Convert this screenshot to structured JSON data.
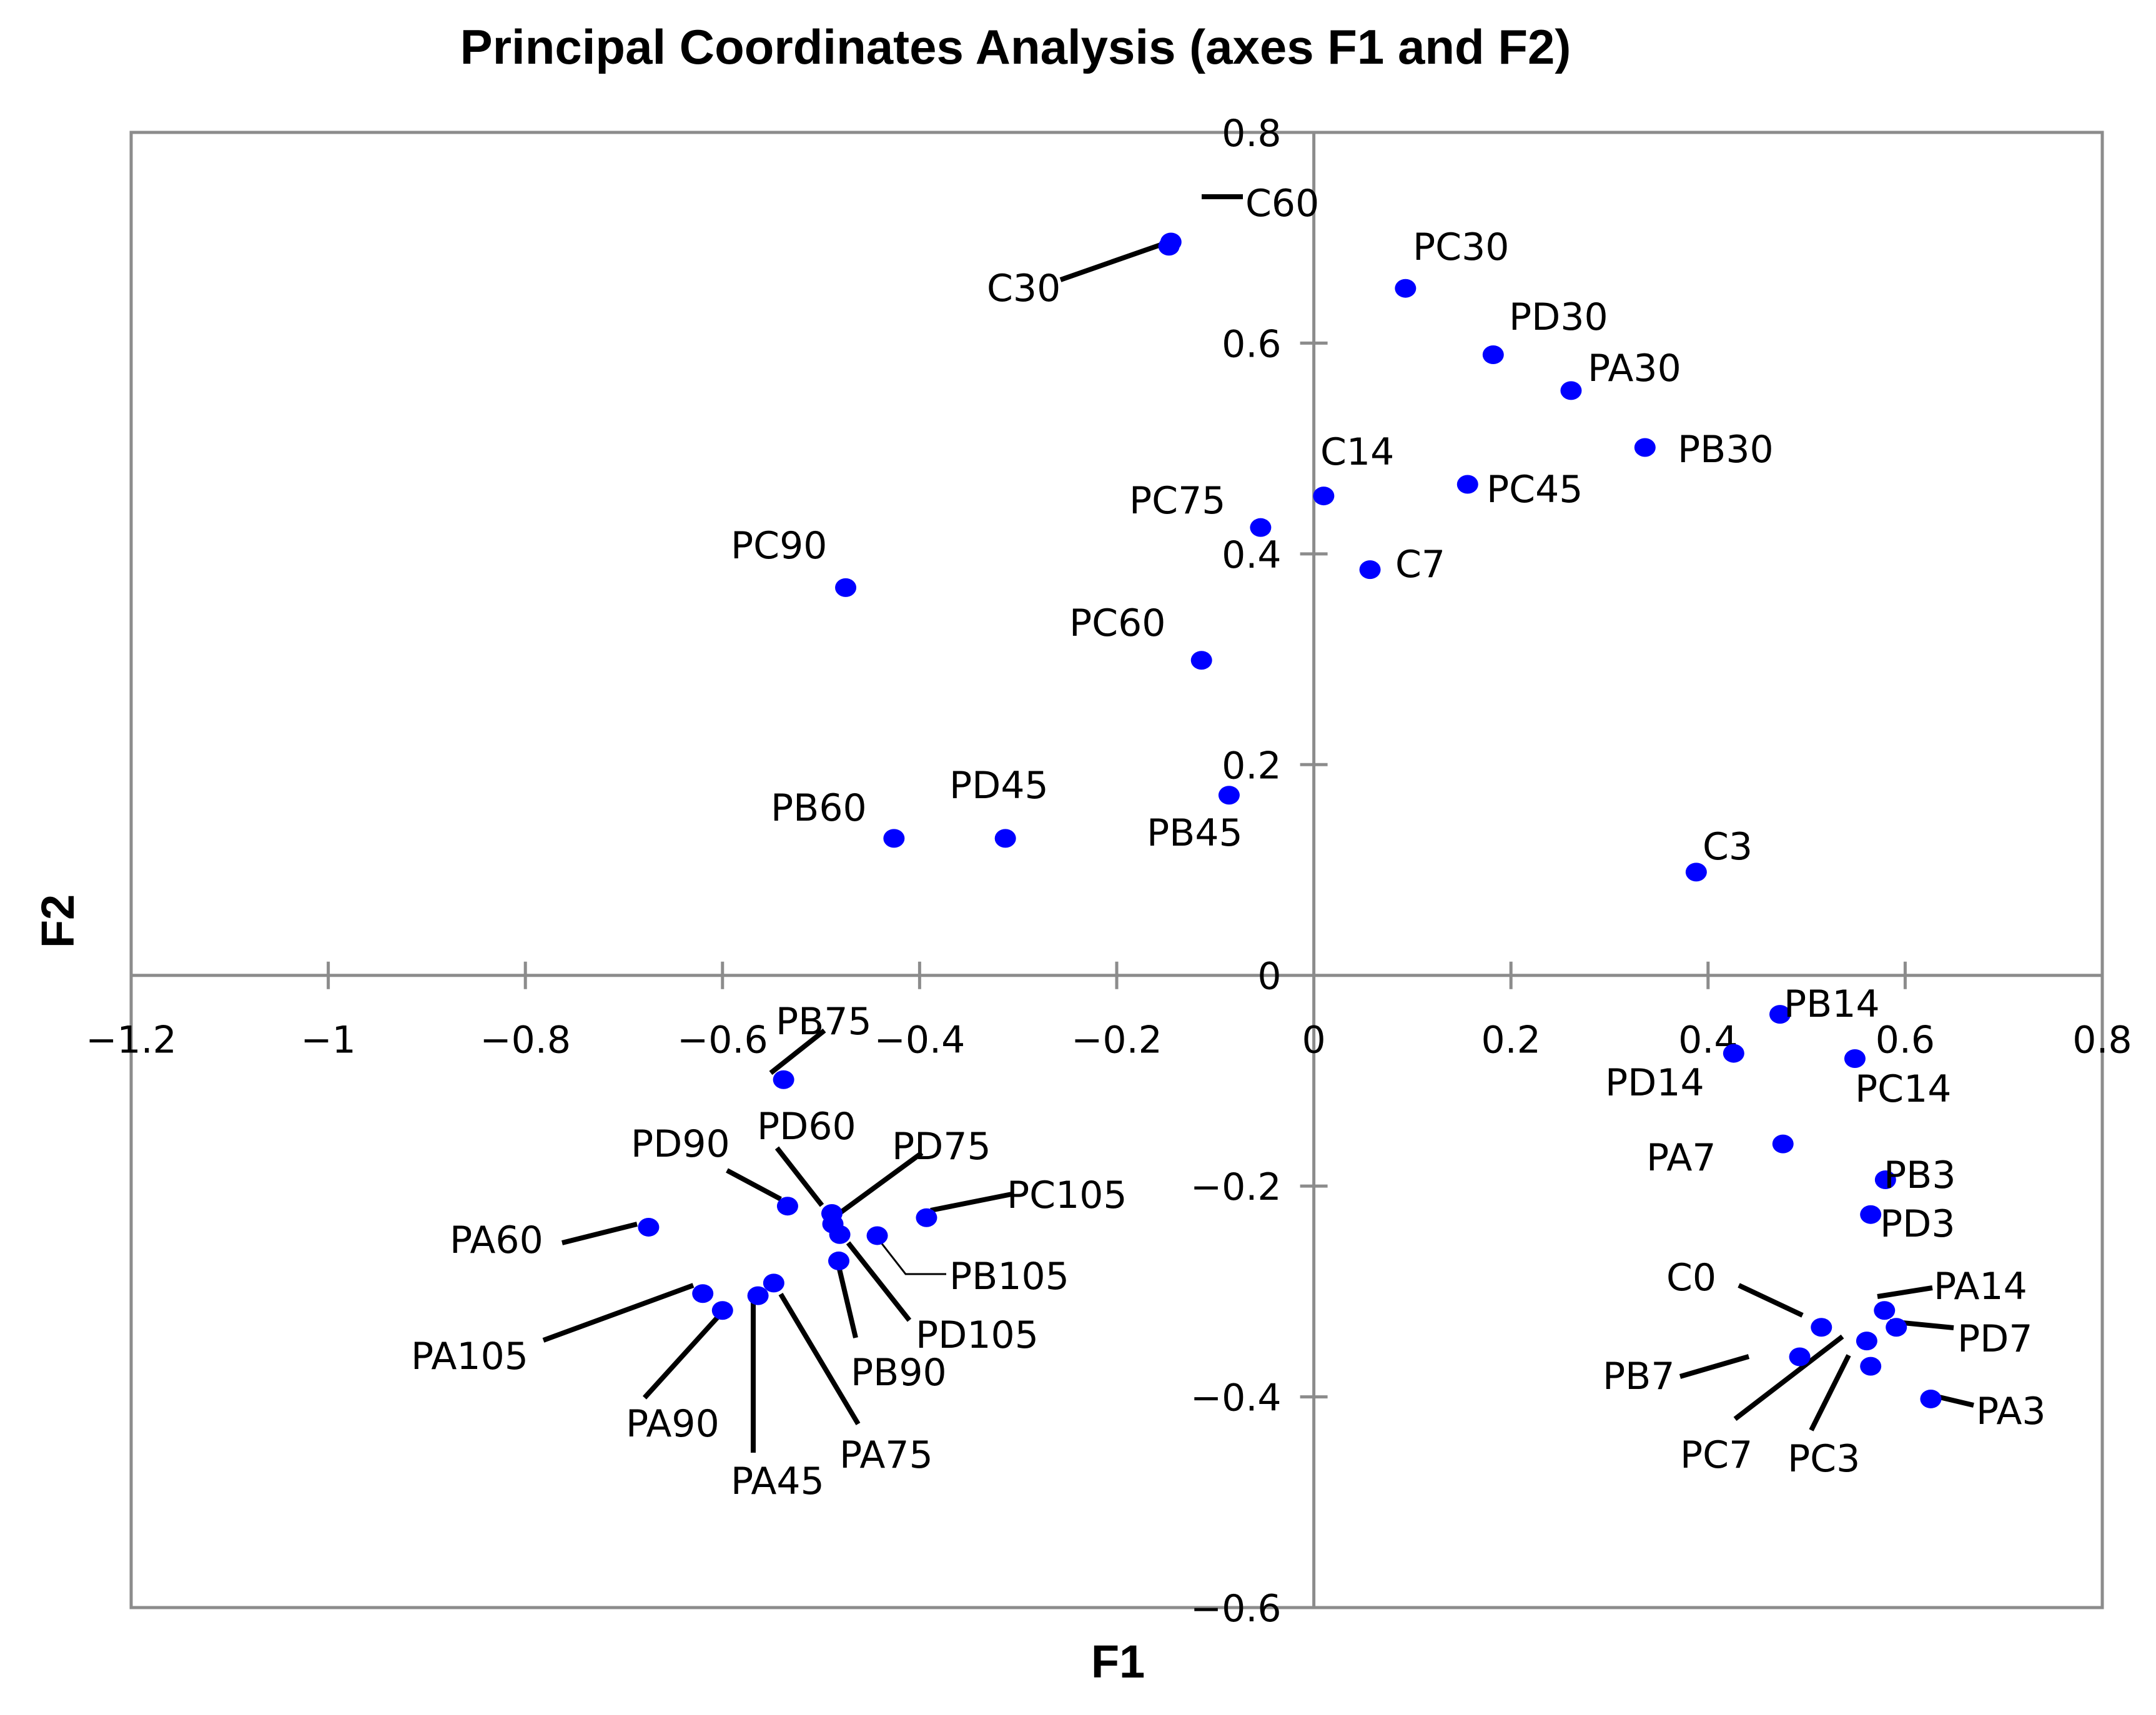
{
  "chart_data": {
    "type": "scatter",
    "title": "Principal Coordinates Analysis (axes F1 and F2)",
    "xlabel": "F1",
    "ylabel": "F2",
    "xlim": [
      -1.2,
      0.8
    ],
    "ylim": [
      -0.6,
      0.8
    ],
    "xticks": [
      -1.2,
      -1,
      -0.8,
      -0.6,
      -0.4,
      -0.2,
      0,
      0.2,
      0.4,
      0.6,
      0.8
    ],
    "yticks": [
      -0.6,
      -0.4,
      -0.2,
      0,
      0.2,
      0.4,
      0.6,
      0.8
    ],
    "xtick_labels": [
      "−1.2",
      "−1",
      "−0.8",
      "−0.6",
      "−0.4",
      "−0.2",
      "0",
      "0.2",
      "0.4",
      "0.6",
      "0.8"
    ],
    "ytick_labels": [
      "−0.6",
      "−0.4",
      "−0.2",
      "0",
      "0.2",
      "0.4",
      "0.6",
      "0.8"
    ],
    "marker_color": "#0000ff",
    "points": [
      {
        "label": "C60",
        "x": -0.145,
        "y": 0.696
      },
      {
        "label": "C30",
        "x": -0.147,
        "y": 0.692
      },
      {
        "label": "PC30",
        "x": 0.093,
        "y": 0.652
      },
      {
        "label": "PD30",
        "x": 0.182,
        "y": 0.589
      },
      {
        "label": "PA30",
        "x": 0.261,
        "y": 0.555
      },
      {
        "label": "PB30",
        "x": 0.336,
        "y": 0.501
      },
      {
        "label": "C14",
        "x": 0.01,
        "y": 0.455
      },
      {
        "label": "PC45",
        "x": 0.156,
        "y": 0.466
      },
      {
        "label": "PC75",
        "x": -0.054,
        "y": 0.425
      },
      {
        "label": "C7",
        "x": 0.057,
        "y": 0.385
      },
      {
        "label": "PC90",
        "x": -0.475,
        "y": 0.368
      },
      {
        "label": "PC60",
        "x": -0.114,
        "y": 0.299
      },
      {
        "label": "PB45",
        "x": -0.086,
        "y": 0.171
      },
      {
        "label": "PD45",
        "x": -0.313,
        "y": 0.13
      },
      {
        "label": "PB60",
        "x": -0.426,
        "y": 0.13
      },
      {
        "label": "C3",
        "x": 0.388,
        "y": 0.098
      },
      {
        "label": "PB14",
        "x": 0.473,
        "y": -0.037
      },
      {
        "label": "PD14",
        "x": 0.426,
        "y": -0.074
      },
      {
        "label": "PC14",
        "x": 0.549,
        "y": -0.079
      },
      {
        "label": "PA7",
        "x": 0.476,
        "y": -0.16
      },
      {
        "label": "PB3",
        "x": 0.58,
        "y": -0.194
      },
      {
        "label": "PD3",
        "x": 0.565,
        "y": -0.227
      },
      {
        "label": "PA14",
        "x": 0.579,
        "y": -0.318
      },
      {
        "label": "C0",
        "x": 0.515,
        "y": -0.334
      },
      {
        "label": "PD7",
        "x": 0.591,
        "y": -0.334
      },
      {
        "label": "PB7",
        "x": 0.493,
        "y": -0.362
      },
      {
        "label": "PC7",
        "x": 0.561,
        "y": -0.347
      },
      {
        "label": "PC3",
        "x": 0.565,
        "y": -0.371
      },
      {
        "label": "PA3",
        "x": 0.626,
        "y": -0.402
      },
      {
        "label": "PB75",
        "x": -0.538,
        "y": -0.099
      },
      {
        "label": "PD90",
        "x": -0.534,
        "y": -0.219
      },
      {
        "label": "PD60",
        "x": -0.489,
        "y": -0.226
      },
      {
        "label": "PD75",
        "x": -0.488,
        "y": -0.236
      },
      {
        "label": "PC105",
        "x": -0.393,
        "y": -0.23
      },
      {
        "label": "PB105",
        "x": -0.443,
        "y": -0.247
      },
      {
        "label": "PD105",
        "x": -0.481,
        "y": -0.246
      },
      {
        "label": "PB90",
        "x": -0.482,
        "y": -0.271
      },
      {
        "label": "PA60",
        "x": -0.675,
        "y": -0.239
      },
      {
        "label": "PA105",
        "x": -0.62,
        "y": -0.302
      },
      {
        "label": "PA90",
        "x": -0.6,
        "y": -0.318
      },
      {
        "label": "PA45",
        "x": -0.564,
        "y": -0.304
      },
      {
        "label": "PA75",
        "x": -0.548,
        "y": -0.292
      }
    ]
  }
}
